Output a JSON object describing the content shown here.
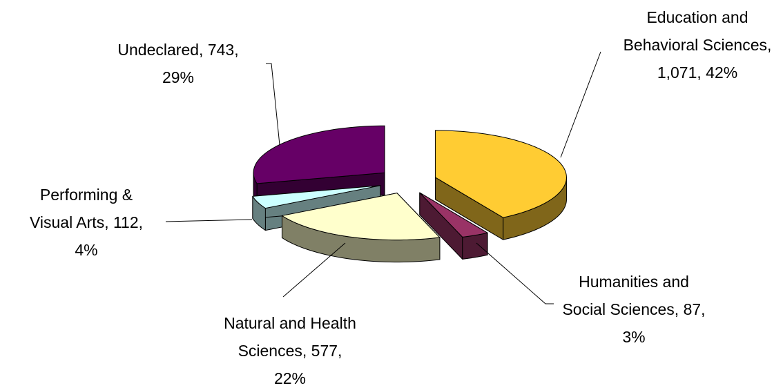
{
  "chart_data": {
    "type": "pie",
    "values": [
      1071,
      87,
      577,
      112,
      743
    ],
    "value_labels": [
      "Education and Behavioral Sciences, 1,071, 42%",
      "Humanities and Social Sciences, 87, 3%",
      "Natural and Health Sciences, 577, 22%",
      "Performing & Visual Arts, 112, 4%",
      "Undeclared, 743, 29%"
    ],
    "colors": [
      "#ffcc33",
      "#993366",
      "#ffffcc",
      "#ccffff",
      "#660066"
    ]
  }
}
